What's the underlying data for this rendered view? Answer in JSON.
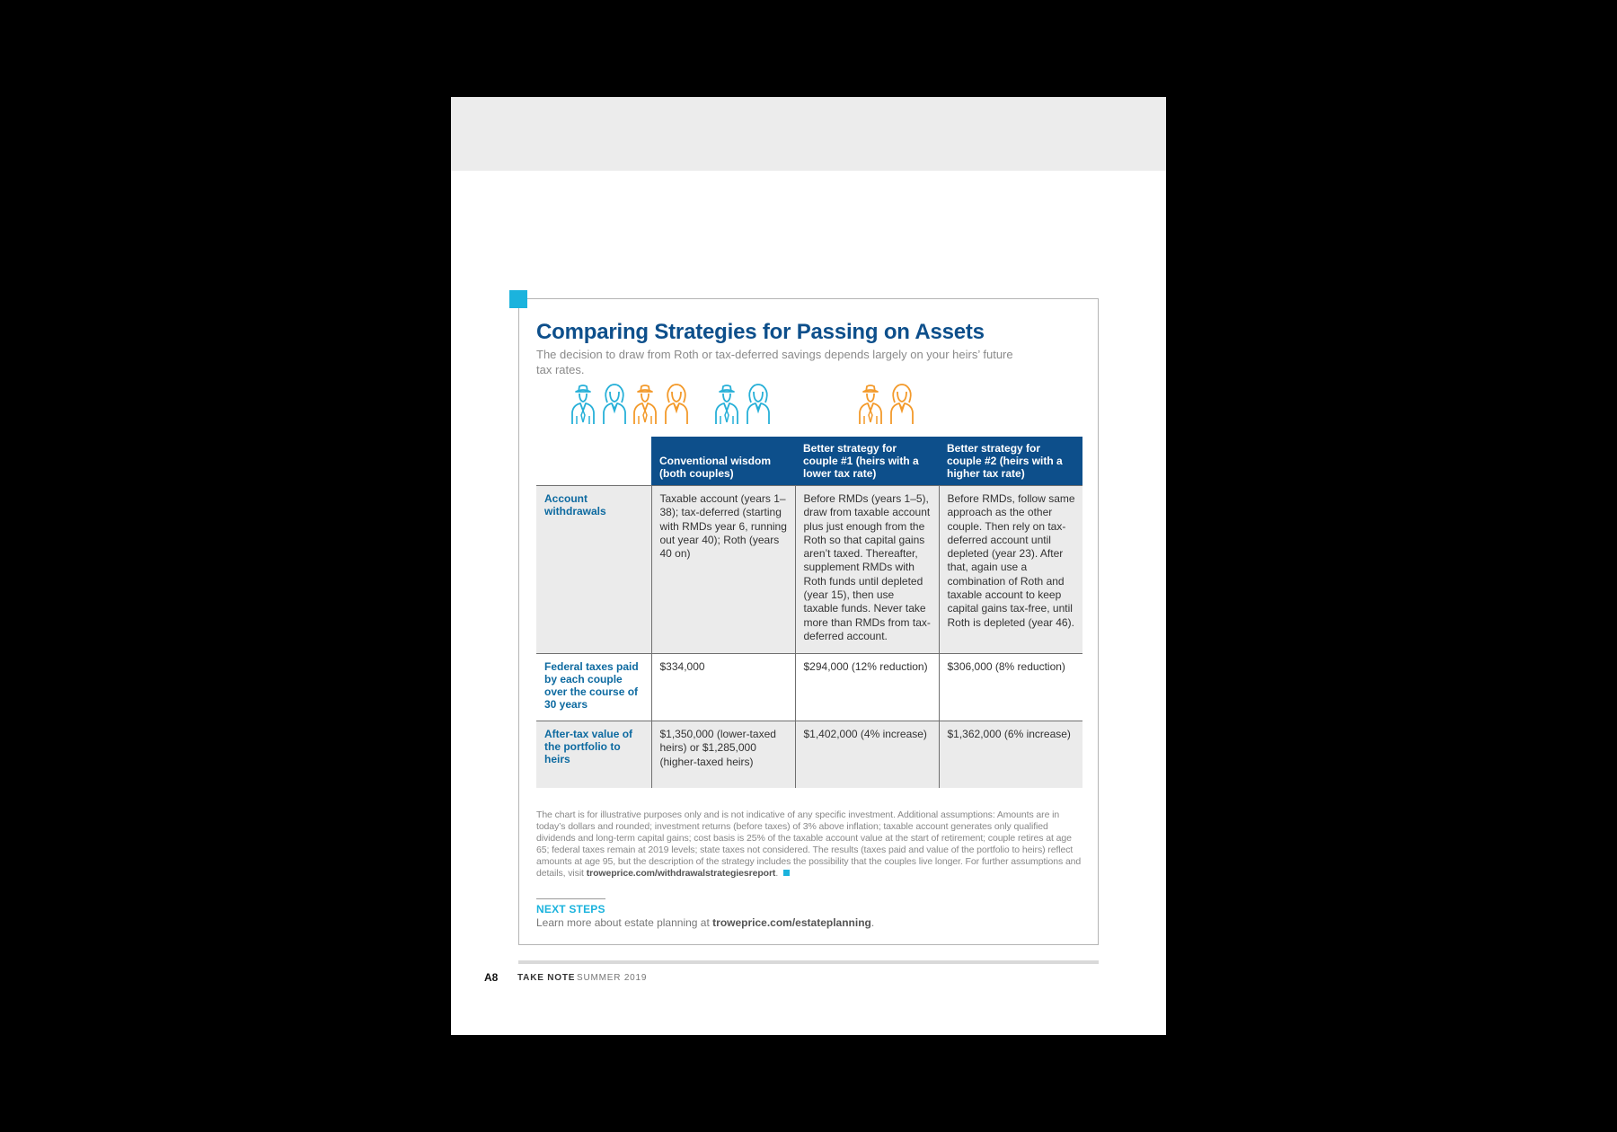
{
  "article": {
    "title": "Comparing Strategies for Passing on Assets",
    "subtitle": "The decision to draw from Roth or tax-deferred savings depends largely on your heirs’ future tax rates."
  },
  "colors": {
    "navy": "#0d4f8b",
    "accent": "#1bb3dd",
    "blue_couple": "#27b0d8",
    "orange_couple": "#f39a2b",
    "shade": "#ebebeb"
  },
  "icons": [
    "couple-icon-blue",
    "couple-icon-orange",
    "couple-icon-blue",
    "couple-icon-orange"
  ],
  "table": {
    "headers": [
      "Conventional wisdom (both couples)",
      "Better strategy for couple #1 (heirs with a lower tax rate)",
      "Better strategy for couple #2 (heirs with a higher tax rate)"
    ],
    "rows": [
      {
        "label": "Account withdrawals",
        "cells": [
          "Taxable account (years 1–38); tax-deferred (starting with RMDs year 6, running out year 40); Roth (years 40 on)",
          "Before RMDs (years 1–5), draw from taxable account plus just enough from the Roth so that capital gains aren’t taxed. Thereafter, supplement RMDs with Roth funds until depleted (year 15), then use taxable funds. Never take more than RMDs from tax-deferred account.",
          "Before RMDs, follow same approach as the other couple. Then rely on tax-deferred account until depleted (year 23). After that, again use a combination of Roth and taxable account to keep capital gains tax-free, until Roth is depleted (year 46)."
        ]
      },
      {
        "label": "Federal taxes paid by each couple over the course of 30 years",
        "cells": [
          "$334,000",
          "$294,000 (12% reduction)",
          "$306,000 (8% reduction)"
        ]
      },
      {
        "label": "After-tax value of the portfolio to heirs",
        "cells": [
          "$1,350,000 (lower-taxed heirs) or $1,285,000 (higher-taxed heirs)",
          "$1,402,000 (4% increase)",
          "$1,362,000 (6% increase)"
        ]
      }
    ]
  },
  "footnote": {
    "text": "The chart is for illustrative purposes only and is not indicative of any specific investment. Additional assumptions: Amounts are in today’s dollars and rounded; investment returns (before taxes) of 3% above inflation; taxable account generates only qualified dividends and long-term capital gains; cost basis is 25% of the taxable account value at the start of retirement; couple retires at age 65; federal taxes remain at 2019 levels; state taxes not considered. The results (taxes paid and value of the portfolio to heirs) reflect amounts at age 95, but the description of the strategy includes the possibility that the couples live longer. For further assumptions and details, visit",
    "link": "troweprice.com/withdrawalstrategiesreport",
    "after_link": "."
  },
  "next_steps": {
    "title": "NEXT STEPS",
    "text": "Learn more about estate planning at",
    "link": "troweprice.com/estateplanning",
    "after_link": "."
  },
  "footer": {
    "page_number": "A8",
    "publication": "TAKE NOTE",
    "issue": "SUMMER 2019"
  }
}
